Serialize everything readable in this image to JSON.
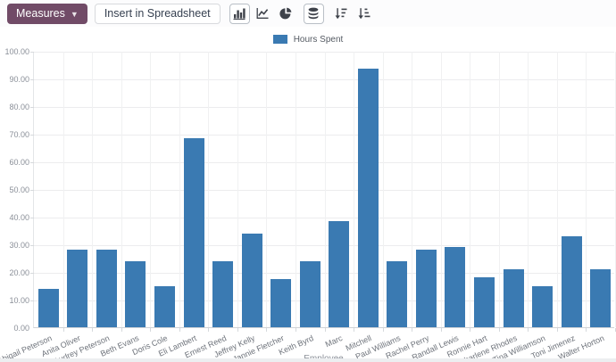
{
  "toolbar": {
    "measures_label": "Measures",
    "insert_label": "Insert in Spreadsheet",
    "view_icons": [
      {
        "name": "bar-chart",
        "label": "Bar Chart",
        "active": true
      },
      {
        "name": "line-chart",
        "label": "Line Chart",
        "active": false
      },
      {
        "name": "pie-chart",
        "label": "Pie Chart",
        "active": false
      },
      {
        "name": "stacked",
        "label": "Stacked",
        "active": true
      },
      {
        "name": "sort-descending",
        "label": "Descending",
        "active": false
      },
      {
        "name": "sort-ascending",
        "label": "Ascending",
        "active": false
      }
    ]
  },
  "colors": {
    "accent": "#714B67",
    "bar": "#3a7ab2",
    "grid": "#ececee",
    "axis_text": "#8a8f98"
  },
  "chart_data": {
    "type": "bar",
    "title": "",
    "xlabel": "Employee",
    "ylabel": "",
    "ylim": [
      0,
      100
    ],
    "ytick_step": 10,
    "ytick_labels": [
      "0.00",
      "10.00",
      "20.00",
      "30.00",
      "40.00",
      "50.00",
      "60.00",
      "70.00",
      "80.00",
      "90.00",
      "100.00"
    ],
    "grid": true,
    "legend_position": "top",
    "categories": [
      "Abigail Peterson",
      "Anita Oliver",
      "Audrey Peterson",
      "Beth Evans",
      "Doris Cole",
      "Eli Lambert",
      "Ernest Reed",
      "Jeffrey Kelly",
      "Jannie Fletcher",
      "Keith Byrd",
      "Marc",
      "Mitchell",
      "Paul Williams",
      "Rachel Perry",
      "Randall Lewis",
      "Ronnie Hart",
      "Sharlene Rhodes",
      "Tina Williamson",
      "Toni Jimenez",
      "Walter Horton"
    ],
    "series": [
      {
        "name": "Hours Spent",
        "values": [
          14,
          28,
          28,
          24,
          15,
          68.5,
          24,
          34,
          17.5,
          24,
          38.5,
          93.5,
          24,
          28,
          29,
          18,
          21,
          15,
          33,
          21
        ]
      }
    ]
  }
}
